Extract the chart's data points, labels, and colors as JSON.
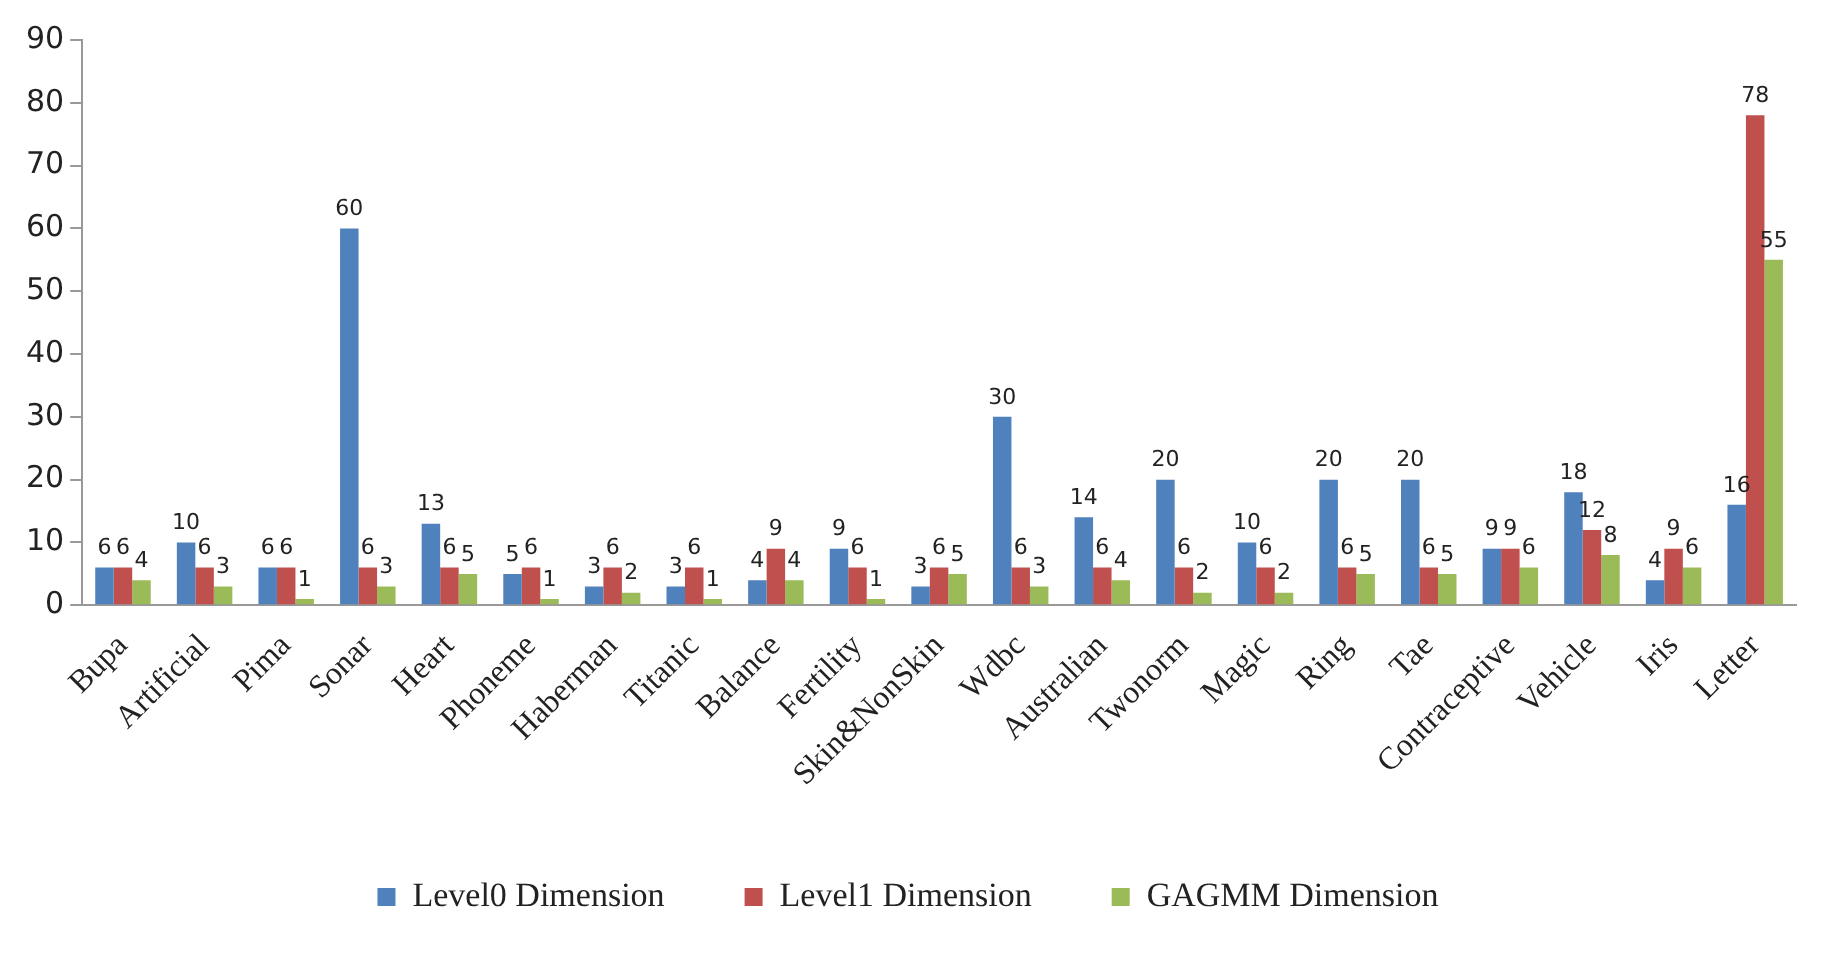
{
  "chart_data": {
    "type": "bar",
    "categories": [
      "Bupa",
      "Artificial",
      "Pima",
      "Sonar",
      "Heart",
      "Phoneme",
      "Haberman",
      "Titanic",
      "Balance",
      "Fertility",
      "Skin&NonSkin",
      "Wdbc",
      "Australian",
      "Twonorm",
      "Magic",
      "Ring",
      "Tae",
      "Contraceptive",
      "Vehicle",
      "Iris",
      "Letter"
    ],
    "series": [
      {
        "name": "Level0 Dimension",
        "color": "#4f81bd",
        "values": [
          6,
          10,
          6,
          60,
          13,
          5,
          3,
          3,
          4,
          9,
          3,
          30,
          14,
          20,
          10,
          20,
          20,
          9,
          18,
          4,
          16
        ]
      },
      {
        "name": "Level1 Dimension",
        "color": "#c0504d",
        "values": [
          6,
          6,
          6,
          6,
          6,
          6,
          6,
          6,
          9,
          6,
          6,
          6,
          6,
          6,
          6,
          6,
          6,
          9,
          12,
          9,
          78
        ]
      },
      {
        "name": "GAGMM Dimension",
        "color": "#9bbb59",
        "values": [
          4,
          3,
          1,
          3,
          5,
          1,
          2,
          1,
          4,
          1,
          5,
          3,
          4,
          2,
          2,
          5,
          5,
          6,
          8,
          6,
          55
        ]
      }
    ],
    "ylim": [
      0,
      90
    ],
    "yticks": [
      0,
      10,
      20,
      30,
      40,
      50,
      60,
      70,
      80,
      90
    ],
    "grid": false,
    "legend": "bottom",
    "data_labels": true
  }
}
